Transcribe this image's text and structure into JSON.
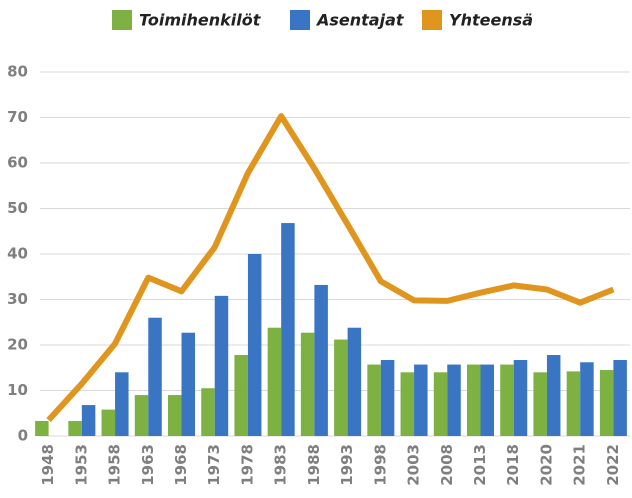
{
  "chart_data": {
    "type": "bar",
    "categories": [
      "1948",
      "1953",
      "1958",
      "1963",
      "1968",
      "1973",
      "1978",
      "1983",
      "1988",
      "1993",
      "1998",
      "2003",
      "2008",
      "2013",
      "2018",
      "2020",
      "2021",
      "2022"
    ],
    "series": [
      {
        "name": "Toimihenkilöt",
        "type": "bar",
        "color": "#7db243",
        "values": [
          3.3,
          3.3,
          5.8,
          9,
          9,
          10.5,
          17.8,
          23.8,
          22.7,
          21.2,
          15.7,
          14,
          14,
          15.7,
          15.7,
          14,
          14.2,
          14.5
        ]
      },
      {
        "name": "Asentajat",
        "type": "bar",
        "color": "#3a75c4",
        "values": [
          null,
          6.8,
          14,
          26,
          22.7,
          30.8,
          40,
          46.8,
          33.2,
          23.8,
          16.7,
          15.7,
          15.7,
          15.7,
          16.7,
          17.8,
          16.2,
          16.7
        ]
      },
      {
        "name": "Yhteensä",
        "type": "line",
        "color": "#e0961e",
        "values": [
          3.5,
          11.5,
          20.3,
          34.8,
          31.8,
          41.5,
          57.8,
          70.3,
          58.8,
          46.5,
          34,
          29.8,
          29.7,
          31.5,
          33.1,
          32.2,
          29.3,
          32.2
        ]
      }
    ],
    "ylim": [
      0,
      80
    ],
    "yticks": [
      0,
      10,
      20,
      30,
      40,
      50,
      60,
      70,
      80
    ],
    "grid": true,
    "legend": "top"
  }
}
